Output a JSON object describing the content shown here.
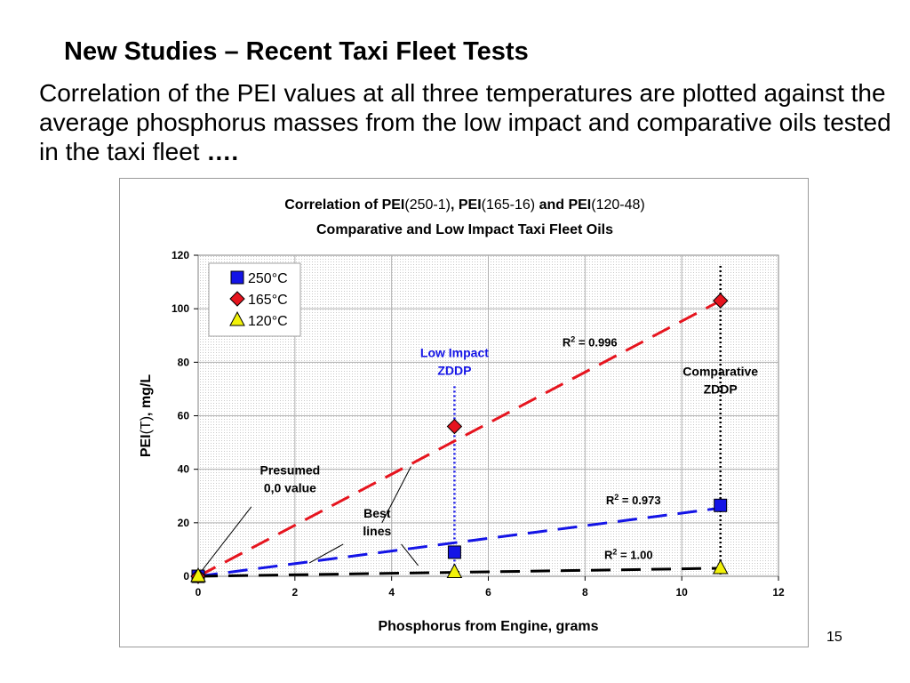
{
  "slide": {
    "title": "New Studies – Recent Taxi Fleet Tests",
    "body": "Correlation of the PEI values at all three temperatures are plotted against the average phosphorus masses from the low impact and comparative oils tested in the taxi fleet",
    "body_end": "….",
    "page_number": "15"
  },
  "chart_data": {
    "type": "scatter",
    "title_parts": [
      {
        "text": "Correlation of PEI",
        "bold": true
      },
      {
        "text": "(250-1)",
        "bold": false
      },
      {
        "text": ", PEI",
        "bold": true
      },
      {
        "text": "(165-16)",
        "bold": false
      },
      {
        "text": " and PEI",
        "bold": true
      },
      {
        "text": "(120-48)",
        "bold": false
      }
    ],
    "subtitle": "Comparative and Low Impact Taxi Fleet Oils",
    "xlabel": "Phosphorus from Engine, grams",
    "ylabel_bold": "PEI",
    "ylabel_rest": "(T), mg/L",
    "xlim": [
      0,
      12
    ],
    "ylim": [
      0,
      120
    ],
    "x_ticks": [
      0,
      2,
      4,
      6,
      8,
      10,
      12
    ],
    "y_ticks": [
      0,
      20,
      40,
      60,
      80,
      100,
      120
    ],
    "grid": true,
    "legend_position": "top-left",
    "series": [
      {
        "name": "250°C",
        "marker": "square",
        "color": "#1414e6",
        "points": [
          [
            0,
            0
          ],
          [
            5.3,
            9
          ],
          [
            10.8,
            26.5
          ]
        ],
        "fit": [
          [
            0,
            0
          ],
          [
            10.8,
            25.5
          ]
        ],
        "fit_label_parts": [
          "R",
          "2",
          " = 0.973"
        ],
        "fit_label_at": [
          9.0,
          27
        ]
      },
      {
        "name": "165°C",
        "marker": "diamond",
        "color": "#e6141e",
        "points": [
          [
            0,
            0
          ],
          [
            5.3,
            56
          ],
          [
            10.8,
            103
          ]
        ],
        "fit": [
          [
            0,
            0
          ],
          [
            10.8,
            103
          ]
        ],
        "fit_label_parts": [
          "R",
          "2",
          " = 0.996"
        ],
        "fit_label_at": [
          8.1,
          86
        ]
      },
      {
        "name": "120°C",
        "marker": "triangle",
        "color": "#f2f20a",
        "points": [
          [
            0,
            0
          ],
          [
            5.3,
            1.5
          ],
          [
            10.8,
            3
          ]
        ],
        "fit": [
          [
            0,
            0
          ],
          [
            10.8,
            3
          ]
        ],
        "fit_label_parts": [
          "R",
          "2",
          " = 1.00"
        ],
        "fit_label_at": [
          8.9,
          6.5
        ]
      }
    ],
    "vlines": [
      {
        "x": 5.3,
        "color": "#1414e6",
        "y_from": 0,
        "y_to": 71
      },
      {
        "x": 10.8,
        "color": "#000000",
        "y_from": 0,
        "y_to": 116
      }
    ],
    "annotations": [
      {
        "lines": [
          "Low Impact",
          "ZDDP"
        ],
        "color": "#1414e6",
        "at": [
          5.3,
          82
        ]
      },
      {
        "lines": [
          "Comparative",
          "ZDDP"
        ],
        "color": "#000000",
        "at": [
          10.8,
          75
        ]
      },
      {
        "lines": [
          "Presumed",
          "0,0 value"
        ],
        "color": "#000000",
        "at": [
          1.9,
          38
        ]
      },
      {
        "lines": [
          "Best",
          "lines"
        ],
        "color": "#000000",
        "at": [
          3.7,
          22
        ]
      }
    ],
    "leaders": [
      {
        "from": [
          1.1,
          26
        ],
        "to": [
          0.05,
          1.5
        ]
      },
      {
        "from": [
          4.4,
          41
        ],
        "to": [
          3.8,
          20
        ]
      },
      {
        "from": [
          2.3,
          5
        ],
        "to": [
          3.0,
          12
        ]
      },
      {
        "from": [
          4.55,
          4
        ],
        "to": [
          4.2,
          12
        ]
      }
    ]
  }
}
